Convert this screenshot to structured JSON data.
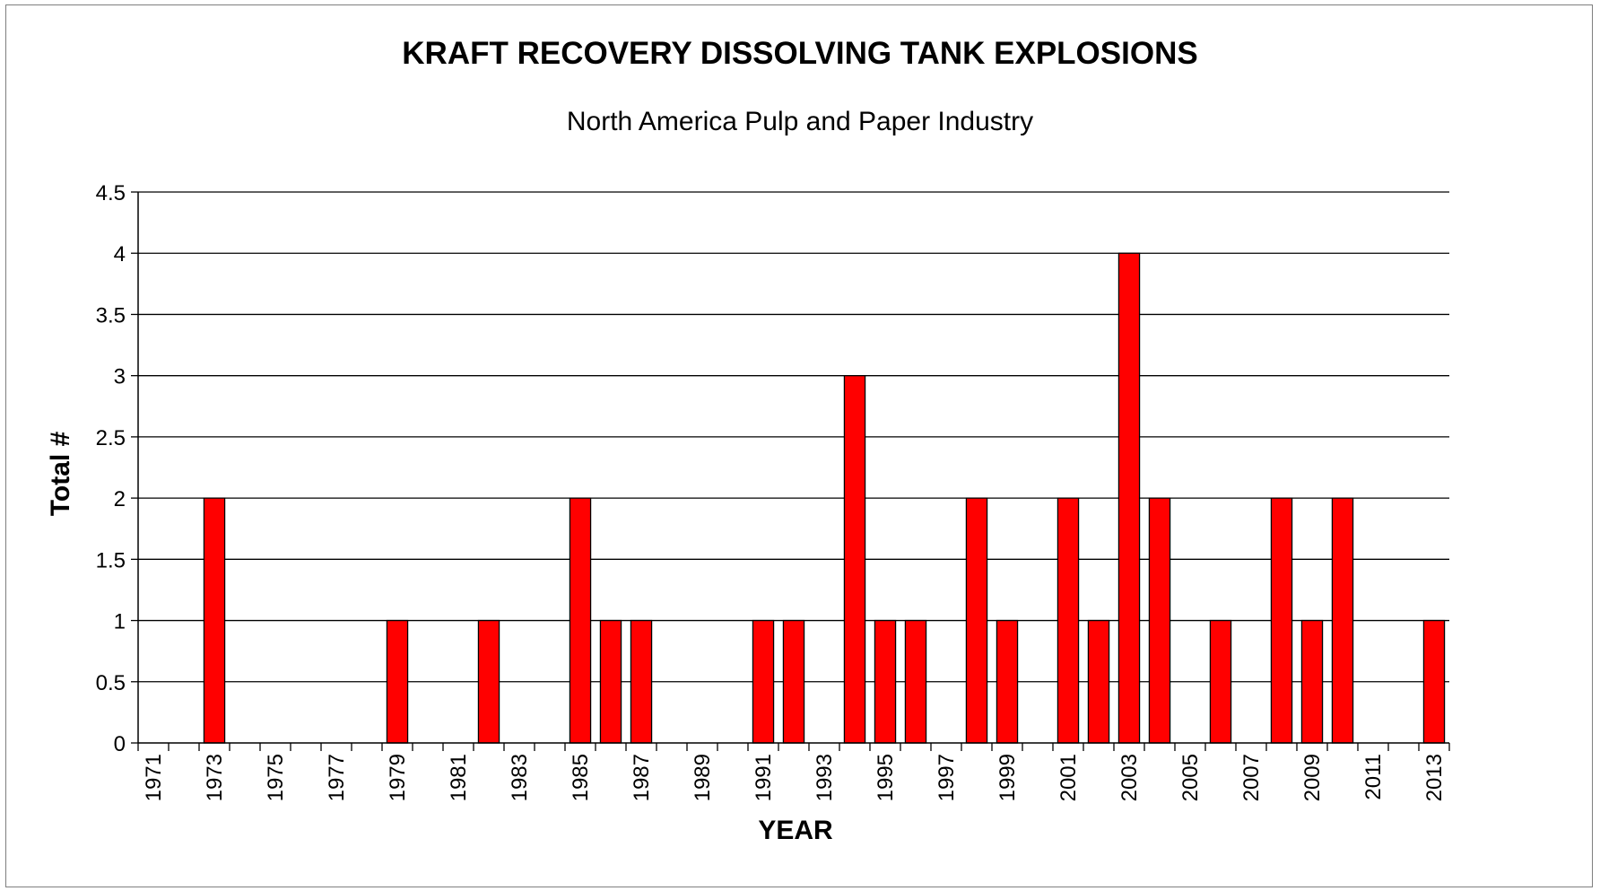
{
  "colors": {
    "bar_fill": "#ff0000",
    "bar_stroke": "#000000",
    "gridline": "#000000",
    "background": "#ffffff"
  },
  "chart_data": {
    "type": "bar",
    "title": "KRAFT RECOVERY DISSOLVING TANK EXPLOSIONS",
    "subtitle": "North America Pulp and Paper Industry",
    "xlabel": "YEAR",
    "ylabel": "Total #",
    "ylim": [
      0,
      4.5
    ],
    "yticks": [
      "0",
      "0.5",
      "1",
      "1.5",
      "2",
      "2.5",
      "3",
      "3.5",
      "4",
      "4.5"
    ],
    "grid": true,
    "legend": "none",
    "categories": [
      "1971",
      "1972",
      "1973",
      "1974",
      "1975",
      "1976",
      "1977",
      "1978",
      "1979",
      "1980",
      "1981",
      "1982",
      "1983",
      "1984",
      "1985",
      "1986",
      "1987",
      "1988",
      "1989",
      "1990",
      "1991",
      "1992",
      "1993",
      "1994",
      "1995",
      "1996",
      "1997",
      "1998",
      "1999",
      "2000",
      "2001",
      "2002",
      "2003",
      "2004",
      "2005",
      "2006",
      "2007",
      "2008",
      "2009",
      "2010",
      "2011",
      "2012",
      "2013"
    ],
    "values": [
      0,
      0,
      2,
      0,
      0,
      0,
      0,
      0,
      1,
      0,
      0,
      1,
      0,
      0,
      2,
      1,
      1,
      0,
      0,
      0,
      1,
      1,
      0,
      3,
      1,
      1,
      0,
      2,
      1,
      0,
      2,
      1,
      4,
      2,
      0,
      1,
      0,
      2,
      1,
      2,
      0,
      0,
      1
    ],
    "tick_label_every": 2
  }
}
